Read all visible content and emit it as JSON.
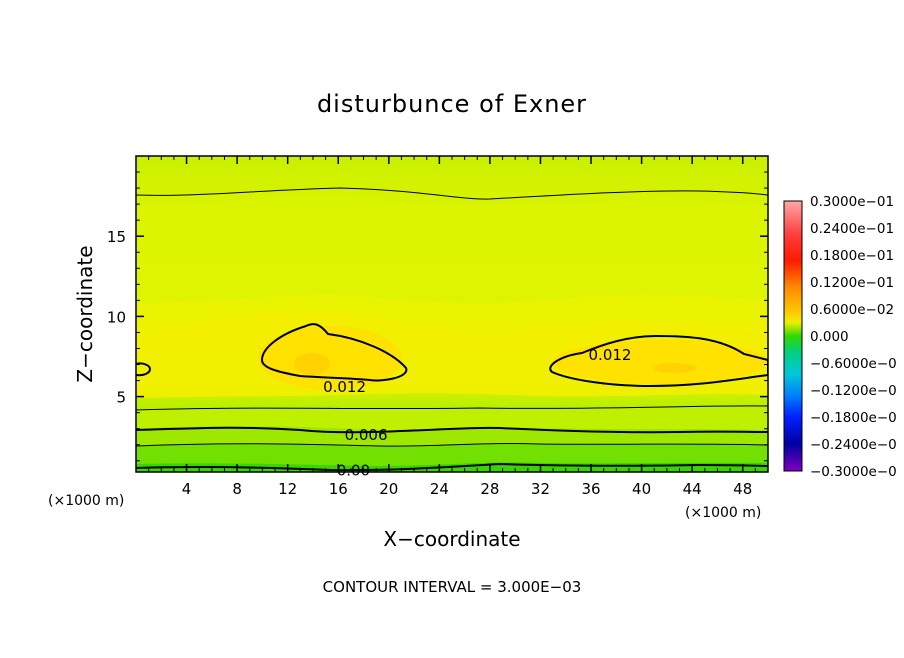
{
  "chart_data": {
    "type": "heatmap",
    "title": "disturbunce of Exner",
    "xlabel": "X−coordinate",
    "ylabel": "Z−coordinate",
    "x_unit_left": "(×1000 m)",
    "x_unit_right": "(×1000 m)",
    "xlim": [
      0,
      50
    ],
    "ylim": [
      0.3,
      20
    ],
    "x_ticks": [
      4,
      8,
      12,
      16,
      20,
      24,
      28,
      32,
      36,
      40,
      44,
      48
    ],
    "x_tick_labels": [
      "4",
      "8",
      "12",
      "16",
      "20",
      "24",
      "28",
      "32",
      "36",
      "40",
      "44",
      "48"
    ],
    "y_ticks": [
      5,
      10,
      15
    ],
    "y_tick_labels": [
      "5",
      "10",
      "15"
    ],
    "contour_interval_text": "CONTOUR INTERVAL = 3.000E−03",
    "contour_labels": [
      {
        "text": "0.012",
        "x": 16.5,
        "z": 5.6
      },
      {
        "text": "0.012",
        "x": 37.5,
        "z": 7.6
      },
      {
        "text": "0.006",
        "x": 18.2,
        "z": 2.6
      },
      {
        "text": "0.00",
        "x": 17.2,
        "z": 0.4
      }
    ],
    "colorbar": {
      "labels": [
        "0.3000e−01",
        "0.2400e−01",
        "0.1800e−01",
        "0.1200e−01",
        "0.6000e−02",
        "0.000",
        "−0.6000e−0",
        "−0.1200e−0",
        "−0.1800e−0",
        "−0.2400e−0",
        "−0.3000e−0"
      ],
      "range": [
        -0.03,
        0.03
      ],
      "colors_top_to_bottom": [
        "#ff9a9a",
        "#ff2a2a",
        "#ff7a00",
        "#ffb000",
        "#ffee00",
        "#7cef00",
        "#00d060",
        "#00c8c8",
        "#0060ff",
        "#0000c0",
        "#7a00c0"
      ]
    }
  }
}
